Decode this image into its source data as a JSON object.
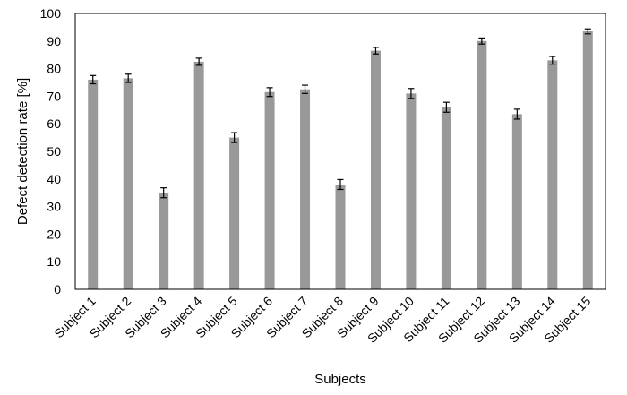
{
  "chart_data": {
    "type": "bar",
    "title": "",
    "xlabel": "Subjects",
    "ylabel": "Defect detection rate [%]",
    "ylim": [
      0,
      100
    ],
    "yticks": [
      0,
      10,
      20,
      30,
      40,
      50,
      60,
      70,
      80,
      90,
      100
    ],
    "categories": [
      "Subject 1",
      "Subject 2",
      "Subject 3",
      "Subject 4",
      "Subject 5",
      "Subject 6",
      "Subject 7",
      "Subject 8",
      "Subject 9",
      "Subject 10",
      "Subject 11",
      "Subject 12",
      "Subject 13",
      "Subject 14",
      "Subject 15"
    ],
    "series": [
      {
        "name": "",
        "values": [
          76,
          76.5,
          35,
          82.5,
          55,
          71.5,
          72.5,
          38,
          86.5,
          71,
          66,
          90,
          63.5,
          83,
          93.5
        ],
        "errors": [
          1.5,
          1.5,
          1.8,
          1.3,
          1.8,
          1.6,
          1.5,
          1.8,
          1.2,
          1.8,
          1.8,
          1.1,
          1.8,
          1.4,
          0.9
        ]
      }
    ],
    "grid": false,
    "legend": "none",
    "colors": {
      "bar": "#999999",
      "axis": "#000000",
      "error_bar": "#000000",
      "text": "#000000"
    }
  }
}
